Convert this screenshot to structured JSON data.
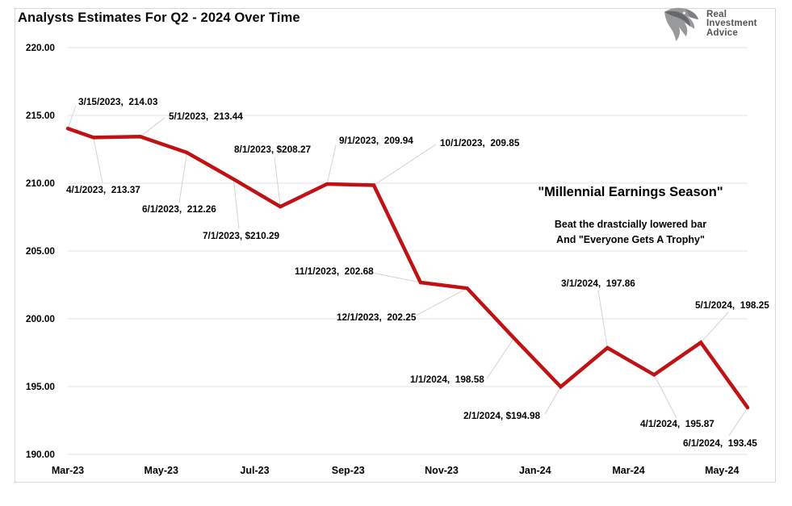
{
  "page": {
    "title": "Analysts Estimates For Q2 - 2024 Over Time"
  },
  "logo": {
    "icon": "eagle-icon",
    "lines": [
      "Real",
      "Investment",
      "Advice"
    ]
  },
  "annotation": {
    "headline": "\"Millennial Earnings Season\"",
    "sub1": "Beat the drastcially lowered bar",
    "sub2": "And \"Everyone Gets A Trophy\""
  },
  "colors": {
    "line": "#c01114",
    "gridline": "#e3e3e3",
    "leader": "#d2d2d2",
    "text": "#000000",
    "logo_gray": "#515356"
  },
  "chart_data": {
    "type": "line",
    "title": "Analysts Estimates For Q2 - 2024 Over Time",
    "xlabel": "",
    "ylabel": "",
    "ylim": [
      190,
      220
    ],
    "y_tick_step": 5,
    "y_tick_labels": [
      "220.00",
      "215.00",
      "210.00",
      "205.00",
      "200.00",
      "195.00",
      "190.00"
    ],
    "x_tick_labels": [
      "Mar-23",
      "May-23",
      "Jul-23",
      "Sep-23",
      "Nov-23",
      "Jan-24",
      "Mar-24",
      "May-24"
    ],
    "grid": "horizontal",
    "legend": "none",
    "series": [
      {
        "name": "Analysts Estimates for Q2-2024",
        "points": [
          {
            "date": "3/15/2023",
            "value": 214.03,
            "label": "3/15/2023,  214.03"
          },
          {
            "date": "4/1/2023",
            "value": 213.37,
            "label": "4/1/2023,  213.37"
          },
          {
            "date": "5/1/2023",
            "value": 213.44,
            "label": "5/1/2023,  213.44"
          },
          {
            "date": "6/1/2023",
            "value": 212.26,
            "label": "6/1/2023,  212.26"
          },
          {
            "date": "7/1/2023",
            "value": 210.29,
            "label": "7/1/2023, $210.29"
          },
          {
            "date": "8/1/2023",
            "value": 208.27,
            "label": "8/1/2023, $208.27"
          },
          {
            "date": "9/1/2023",
            "value": 209.94,
            "label": "9/1/2023,  209.94"
          },
          {
            "date": "10/1/2023",
            "value": 209.85,
            "label": "10/1/2023,  209.85"
          },
          {
            "date": "11/1/2023",
            "value": 202.68,
            "label": "11/1/2023,  202.68"
          },
          {
            "date": "12/1/2023",
            "value": 202.25,
            "label": "12/1/2023,  202.25"
          },
          {
            "date": "1/1/2024",
            "value": 198.58,
            "label": "1/1/2024,  198.58"
          },
          {
            "date": "2/1/2024",
            "value": 194.98,
            "label": "2/1/2024, $194.98"
          },
          {
            "date": "3/1/2024",
            "value": 197.86,
            "label": "3/1/2024,  197.86"
          },
          {
            "date": "4/1/2024",
            "value": 195.87,
            "label": "4/1/2024,  195.87"
          },
          {
            "date": "5/1/2024",
            "value": 198.25,
            "label": "5/1/2024,  198.25"
          },
          {
            "date": "6/1/2024",
            "value": 193.45,
            "label": "6/1/2024,  193.45"
          }
        ]
      }
    ]
  }
}
